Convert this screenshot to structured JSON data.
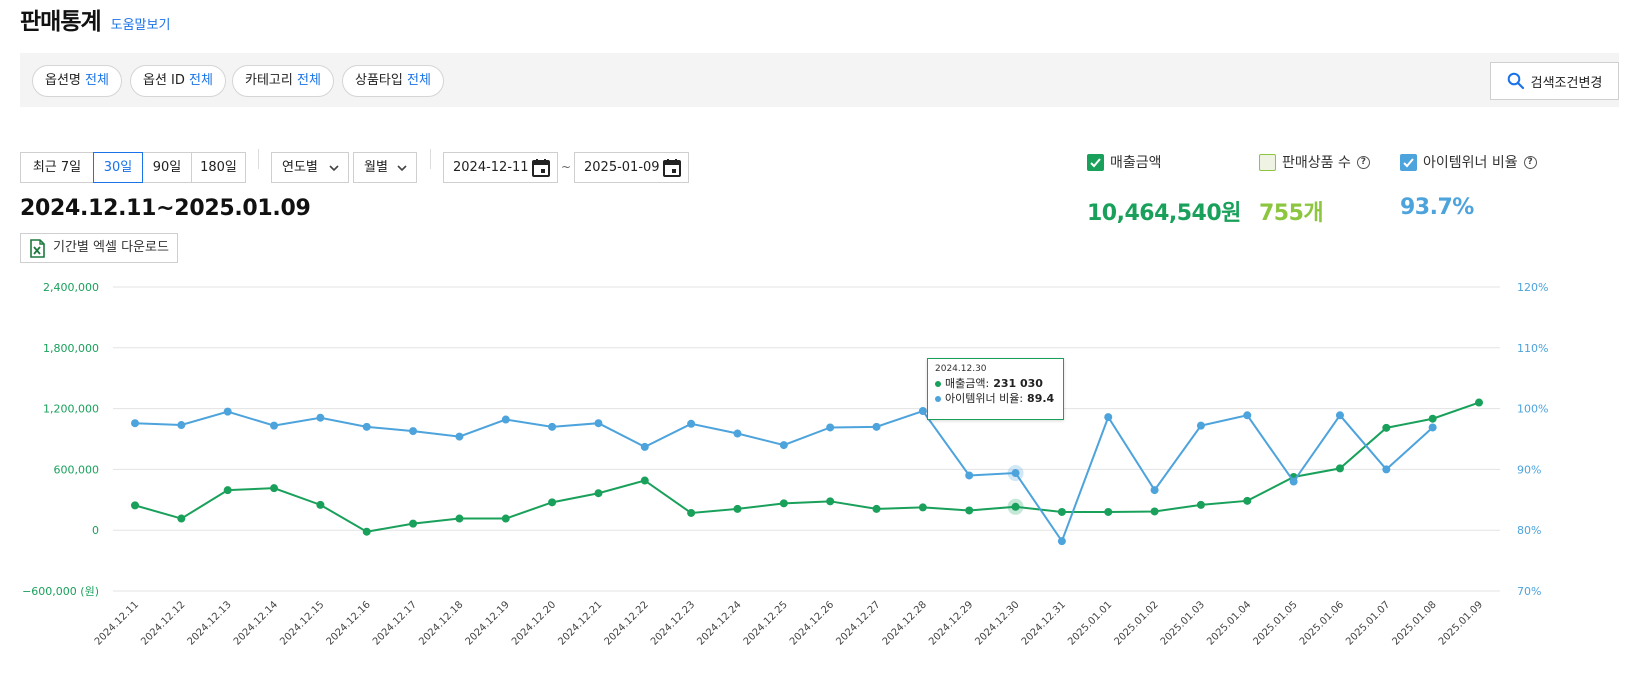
{
  "header": {
    "title": "판매통계",
    "help": "도움말보기"
  },
  "filters": [
    {
      "label": "옵션명",
      "value": "전체"
    },
    {
      "label": "옵션 ID",
      "value": "전체"
    },
    {
      "label": "카테고리",
      "value": "전체"
    },
    {
      "label": "상품타입",
      "value": "전체"
    }
  ],
  "search_button": "검색조건변경",
  "period_buttons": [
    "최근 7일",
    "30일",
    "90일",
    "180일"
  ],
  "active_period": "30일",
  "dropdowns": {
    "yearly": "연도별",
    "monthly": "월별"
  },
  "date_from": "2024-12-11",
  "date_to": "2025-01-09",
  "date_sep": "~",
  "range_label": "2024.12.11~2025.01.09",
  "excel_button": "기간별 엑셀 다운로드",
  "metrics": {
    "sales": {
      "label": "매출금액",
      "value": "10,464,540원",
      "color": "#19a05a",
      "checked": true
    },
    "count": {
      "label": "판매상품 수",
      "value": "755개",
      "color": "#8cc63f",
      "checked": false
    },
    "winner": {
      "label": "아이템위너 비율",
      "value": "93.7%",
      "color": "#4da3dc",
      "checked": true
    }
  },
  "tooltip": {
    "date": "2024.12.30",
    "sales_label": "매출금액:",
    "sales_value": "231 030",
    "winner_label": "아이템위너 비율:",
    "winner_value": "89.4"
  },
  "chart_data": {
    "type": "line",
    "x": [
      "2024.12.11",
      "2024.12.12",
      "2024.12.13",
      "2024.12.14",
      "2024.12.15",
      "2024.12.16",
      "2024.12.17",
      "2024.12.18",
      "2024.12.19",
      "2024.12.20",
      "2024.12.21",
      "2024.12.22",
      "2024.12.23",
      "2024.12.24",
      "2024.12.25",
      "2024.12.26",
      "2024.12.27",
      "2024.12.28",
      "2024.12.29",
      "2024.12.30",
      "2024.12.31",
      "2025.01.01",
      "2025.01.02",
      "2025.01.03",
      "2025.01.04",
      "2025.01.05",
      "2025.01.06",
      "2025.01.07",
      "2025.01.08",
      "2025.01.09"
    ],
    "left_axis": {
      "ticks": [
        "2,400,000",
        "1,800,000",
        "1,200,000",
        "600,000",
        "0",
        "−600,000 (원)"
      ],
      "ylim": [
        -600000,
        2400000
      ]
    },
    "right_axis": {
      "ticks": [
        "120%",
        "110%",
        "100%",
        "90%",
        "80%",
        "70%"
      ],
      "ylim": [
        70,
        120
      ]
    },
    "series": [
      {
        "name": "매출금액",
        "axis": "left",
        "color": "#19a05a",
        "values": [
          245000,
          115000,
          395000,
          415000,
          250000,
          -15000,
          65000,
          115000,
          115000,
          275000,
          365000,
          490000,
          170000,
          210000,
          265000,
          285000,
          210000,
          225000,
          195000,
          231030,
          180000,
          180000,
          185000,
          250000,
          290000,
          525000,
          610000,
          1010000,
          1100000,
          1260000
        ]
      },
      {
        "name": "아이템위너 비율",
        "axis": "right",
        "color": "#4da3dc",
        "values": [
          97.6,
          97.3,
          99.5,
          97.2,
          98.5,
          97.0,
          96.3,
          95.4,
          98.2,
          97.0,
          97.6,
          93.7,
          97.5,
          95.9,
          94.0,
          96.9,
          97.0,
          99.6,
          89.0,
          89.4,
          78.2,
          98.6,
          86.6,
          97.2,
          98.9,
          88.0,
          98.9,
          90.0,
          96.9,
          null
        ]
      }
    ],
    "highlight_index": 19,
    "grid": true
  }
}
